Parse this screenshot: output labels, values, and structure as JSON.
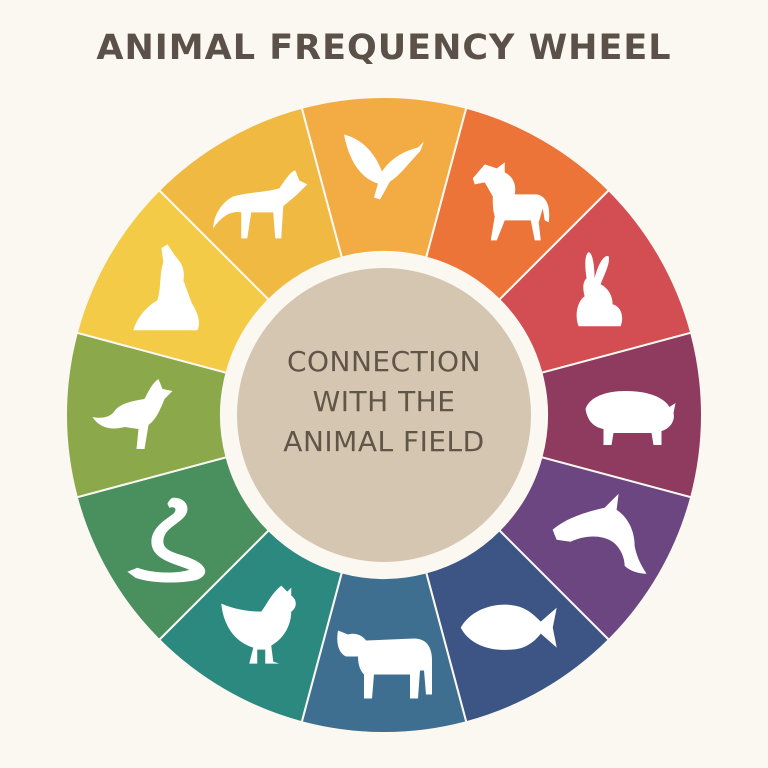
{
  "title": "ANIMAL FREQUENCY WHEEL",
  "center": {
    "lines": [
      "CONNECTION",
      "WITH THE",
      "ANIMAL FIELD"
    ],
    "color": "#d4c6b1"
  },
  "segments": [
    {
      "animal": "bird",
      "icon": "bird-icon",
      "color": "#f2ac43"
    },
    {
      "animal": "horse",
      "icon": "horse-icon",
      "color": "#ec7439"
    },
    {
      "animal": "rabbit",
      "icon": "rabbit-icon",
      "color": "#d34e53"
    },
    {
      "animal": "pig",
      "icon": "pig-icon",
      "color": "#8f3a5f"
    },
    {
      "animal": "dolphin",
      "icon": "dolphin-icon",
      "color": "#6b4680"
    },
    {
      "animal": "fish",
      "icon": "fish-icon",
      "color": "#3c5584"
    },
    {
      "animal": "cow",
      "icon": "cow-icon",
      "color": "#3e6f90"
    },
    {
      "animal": "chicken",
      "icon": "chicken-icon",
      "color": "#2b8980"
    },
    {
      "animal": "snake",
      "icon": "snake-icon",
      "color": "#49905e"
    },
    {
      "animal": "fox",
      "icon": "fox-icon",
      "color": "#8ba84b"
    },
    {
      "animal": "dog",
      "icon": "dog-icon",
      "color": "#f3cb47"
    },
    {
      "animal": "wolf",
      "icon": "wolf-icon",
      "color": "#f0b942"
    }
  ]
}
